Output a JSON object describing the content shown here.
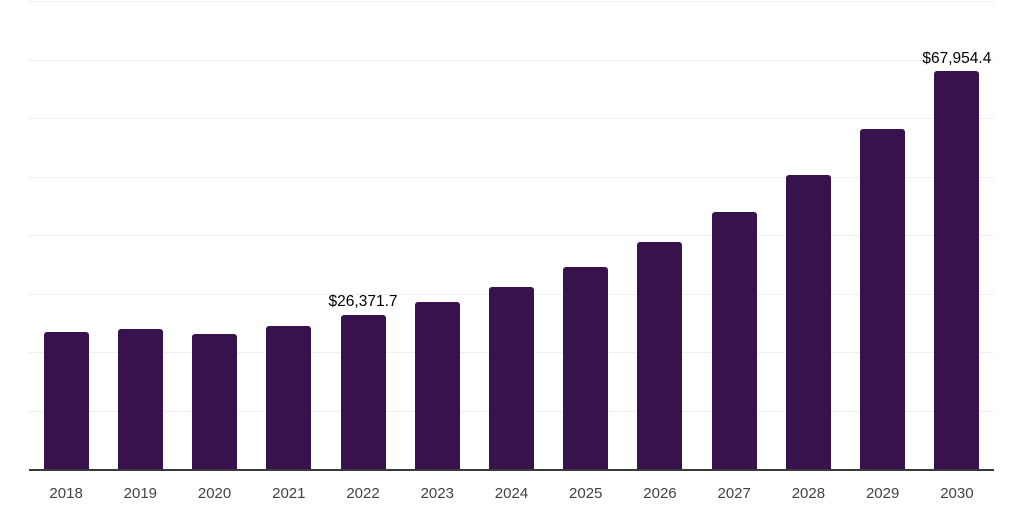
{
  "chart_data": {
    "type": "bar",
    "title": "",
    "xlabel": "",
    "ylabel": "",
    "categories": [
      "2018",
      "2019",
      "2020",
      "2021",
      "2022",
      "2023",
      "2024",
      "2025",
      "2026",
      "2027",
      "2028",
      "2029",
      "2030"
    ],
    "values": [
      23500,
      24000,
      23150,
      24450,
      26371.7,
      28500,
      31150,
      34550,
      38800,
      43950,
      50250,
      58100,
      67954.4
    ],
    "data_labels": {
      "2022": "$26,371.7",
      "2030": "$67,954.4"
    },
    "ylim": [
      0,
      80000
    ],
    "gridline_step": 10000,
    "grid": "horizontal",
    "legend": "none",
    "bar_color": "#37124C",
    "gridline_color": "#efefef",
    "axis_line_color": "#3a3a3a",
    "tick_label_color": "#424242",
    "data_label_color": "#000000"
  }
}
